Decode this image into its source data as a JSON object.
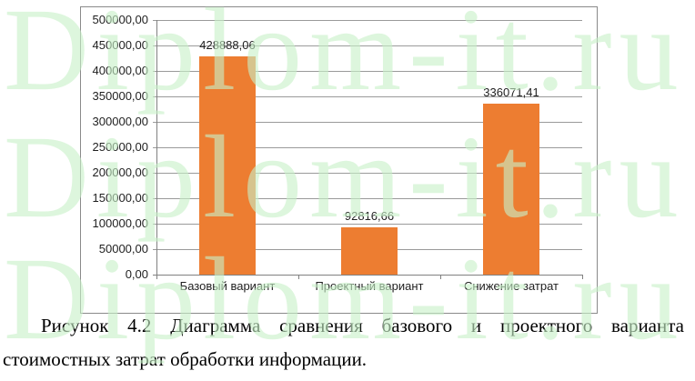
{
  "watermark": {
    "text": "Diplom-it.ru",
    "color": "rgba(200,240,200,0.62)"
  },
  "colors": {
    "bar": "#ED7D31",
    "grid": "#9a9a9a",
    "axis": "#808080",
    "border": "#8a8a8a",
    "text": "#1f1f1f"
  },
  "chart_data": {
    "type": "bar",
    "title": "",
    "xlabel": "",
    "ylabel": "",
    "categories": [
      "Базовый вариант",
      "Проектный вариант",
      "Снижение затрат"
    ],
    "values": [
      428888.06,
      92816.66,
      336071.41
    ],
    "data_labels": [
      "428888,06",
      "92816,66",
      "336071,41"
    ],
    "y_tick_labels_top_to_bottom": [
      "500000,00",
      "450000,00",
      "400000,00",
      "350000,00",
      "300000,00",
      "250000,00",
      "200000,00",
      "150000,00",
      "100000,00",
      "50000,00",
      "0,00"
    ],
    "ylim": [
      0,
      500000
    ],
    "grid": true,
    "legend_position": "none",
    "bar_color": "#ED7D31"
  },
  "caption": {
    "line1": "Рисунок 4.2 Диаграмма сравнения базового и проектного варианта",
    "line2": "стоимостных затрат обработки информации."
  }
}
